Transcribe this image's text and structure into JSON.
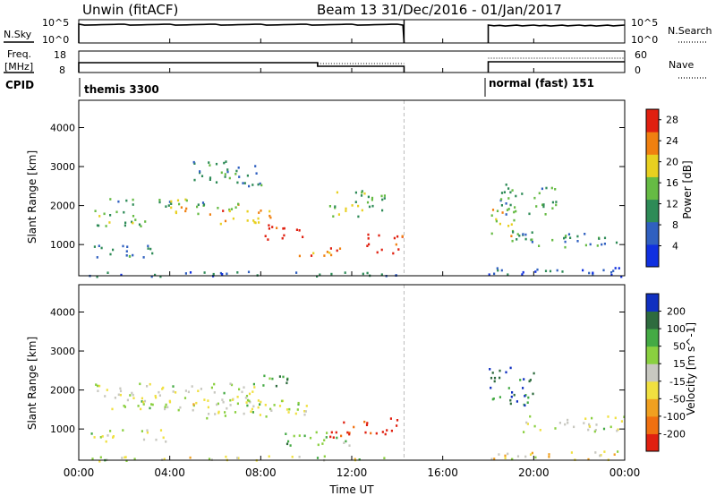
{
  "header": {
    "title": "Unwin (fitACF)",
    "beam_info": "Beam 13  31/Dec/2016 - 01/Jan/2017"
  },
  "nsky_panel": {
    "left_label": "N.Sky",
    "right_label": "N.Search",
    "left_ticks": [
      "10^5",
      "10^0"
    ],
    "right_ticks": [
      "10^5",
      "10^0"
    ]
  },
  "freq_panel": {
    "left_label_1": "Freq.",
    "left_label_2": "[MHz]",
    "left_ticks": [
      "18",
      "8"
    ],
    "right_ticks": [
      "60",
      "0"
    ],
    "right_label": "Nave"
  },
  "cpid": {
    "label": "CPID",
    "segments": [
      {
        "text": "themis 3300",
        "start_h": 0.0
      },
      {
        "text": "normal (fast) 151",
        "start_h": 18.0
      }
    ]
  },
  "data_gap": {
    "start_h": 14.3,
    "end_h": 18.0
  },
  "time_axis": {
    "ticks": [
      "00:00",
      "04:00",
      "08:00",
      "12:00",
      "16:00",
      "20:00",
      "00:00"
    ],
    "label": "Time UT",
    "range_h": [
      0,
      24
    ]
  },
  "chart_data": [
    {
      "type": "heatmap",
      "name": "power",
      "ylabel": "Slant Range [km]",
      "yticks": [
        "1000",
        "2000",
        "3000",
        "4000"
      ],
      "ylim": [
        200,
        4700
      ],
      "colorbar": {
        "label": "Power [dB]",
        "ticks": [
          "4",
          "8",
          "12",
          "16",
          "20",
          "24",
          "28"
        ],
        "range": [
          0,
          30
        ],
        "colors": [
          "#1030e0",
          "#3060c0",
          "#2e8b57",
          "#66bb44",
          "#e8d020",
          "#f08010",
          "#e02010"
        ]
      },
      "bands": [
        {
          "t0": 0.2,
          "t1": 14.2,
          "r0": 200,
          "r1": 330,
          "level": 0.25
        },
        {
          "t0": 0.5,
          "t1": 3.0,
          "r0": 1500,
          "r1": 1950,
          "level": 0.45
        },
        {
          "t0": 1.0,
          "t1": 5.5,
          "r0": 2000,
          "r1": 2200,
          "level": 0.35
        },
        {
          "t0": 0.5,
          "t1": 4.0,
          "r0": 700,
          "r1": 1000,
          "level": 0.3
        },
        {
          "t0": 4.0,
          "t1": 7.0,
          "r0": 1800,
          "r1": 2200,
          "level": 0.6
        },
        {
          "t0": 6.0,
          "t1": 8.5,
          "r0": 1500,
          "r1": 1900,
          "level": 0.75
        },
        {
          "t0": 8.0,
          "t1": 10.0,
          "r0": 1150,
          "r1": 1550,
          "level": 0.95
        },
        {
          "t0": 9.5,
          "t1": 11.5,
          "r0": 650,
          "r1": 950,
          "level": 0.85
        },
        {
          "t0": 12.5,
          "t1": 14.2,
          "r0": 800,
          "r1": 1300,
          "level": 0.9
        },
        {
          "t0": 11.0,
          "t1": 13.5,
          "r0": 1700,
          "r1": 2400,
          "level": 0.5
        },
        {
          "t0": 5.0,
          "t1": 8.0,
          "r0": 2500,
          "r1": 3200,
          "level": 0.35
        },
        {
          "t0": 18.0,
          "t1": 24.0,
          "r0": 200,
          "r1": 450,
          "level": 0.2
        },
        {
          "t0": 18.0,
          "t1": 19.3,
          "r0": 1200,
          "r1": 2000,
          "level": 0.6
        },
        {
          "t0": 19.0,
          "t1": 24.0,
          "r0": 950,
          "r1": 1350,
          "level": 0.35
        },
        {
          "t0": 18.5,
          "t1": 21.0,
          "r0": 1800,
          "r1": 2600,
          "level": 0.4
        }
      ]
    },
    {
      "type": "heatmap",
      "name": "velocity",
      "ylabel": "Slant Range [km]",
      "yticks": [
        "1000",
        "2000",
        "3000",
        "4000"
      ],
      "ylim": [
        200,
        4700
      ],
      "colorbar": {
        "label": "Velocity [m s^-1]",
        "ticks": [
          "200",
          "100",
          "50",
          "15",
          "-15",
          "-50",
          "-100",
          "-200"
        ],
        "range": [
          -250,
          250
        ],
        "colors": [
          "#1030c0",
          "#2e6b3e",
          "#44aa44",
          "#8ad040",
          "#c8c8c0",
          "#f0e040",
          "#f0a020",
          "#f07010",
          "#e02010"
        ]
      },
      "bands": [
        {
          "t0": 0.2,
          "t1": 14.2,
          "r0": 200,
          "r1": 330,
          "level": 0.5
        },
        {
          "t0": 0.5,
          "t1": 8.0,
          "r0": 1500,
          "r1": 2200,
          "level": 0.48
        },
        {
          "t0": 5.0,
          "t1": 10.0,
          "r0": 1300,
          "r1": 1800,
          "level": 0.5
        },
        {
          "t0": 0.5,
          "t1": 4.0,
          "r0": 700,
          "r1": 1000,
          "level": 0.5
        },
        {
          "t0": 9.0,
          "t1": 12.0,
          "r0": 600,
          "r1": 950,
          "level": 0.35
        },
        {
          "t0": 11.0,
          "t1": 12.5,
          "r0": 800,
          "r1": 1200,
          "level": 0.95
        },
        {
          "t0": 12.5,
          "t1": 14.2,
          "r0": 850,
          "r1": 1300,
          "level": 0.98
        },
        {
          "t0": 8.0,
          "t1": 9.5,
          "r0": 2000,
          "r1": 2400,
          "level": 0.2
        },
        {
          "t0": 18.0,
          "t1": 24.0,
          "r0": 200,
          "r1": 450,
          "level": 0.6
        },
        {
          "t0": 18.0,
          "t1": 20.0,
          "r0": 1600,
          "r1": 2600,
          "level": 0.15
        },
        {
          "t0": 19.5,
          "t1": 24.0,
          "r0": 950,
          "r1": 1350,
          "level": 0.5
        }
      ]
    }
  ],
  "colors": {
    "background": "#ffffff",
    "axis": "#000000",
    "gap_line": "#bbbbbb"
  }
}
